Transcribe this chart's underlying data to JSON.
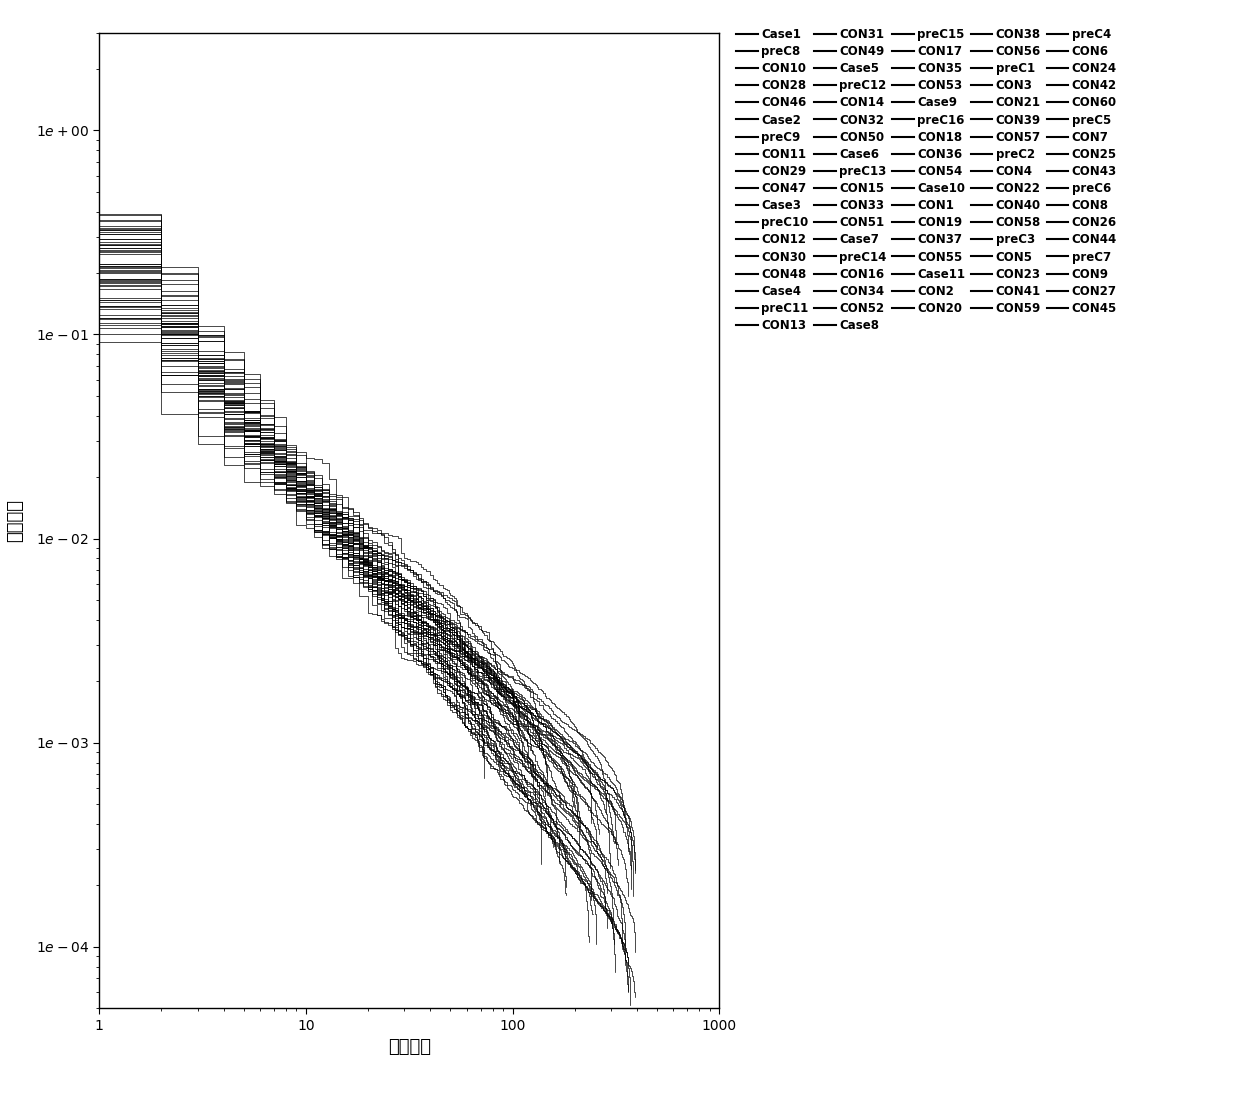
{
  "xlabel": "物种等级",
  "ylabel": "相对丰度",
  "xlim": [
    1,
    1000
  ],
  "ylim": [
    5e-05,
    3
  ],
  "yticks": [
    0.0001,
    0.001,
    0.01,
    0.1,
    1.0
  ],
  "xticks": [
    1,
    10,
    100,
    1000
  ],
  "n_samples": 60,
  "legend_labels": [
    [
      "Case1",
      "preC8",
      "CON10",
      "CON28",
      "CON46"
    ],
    [
      "Case2",
      "preC9",
      "CON11",
      "CON29",
      "CON47"
    ],
    [
      "Case3",
      "preC10",
      "CON12",
      "CON30",
      "CON48"
    ],
    [
      "Case4",
      "preC11",
      "CON13",
      "CON31",
      "CON49"
    ],
    [
      "Case5",
      "preC12",
      "CON14",
      "CON32",
      "CON50"
    ],
    [
      "Case6",
      "preC13",
      "CON15",
      "CON33",
      "CON51"
    ],
    [
      "Case7",
      "preC14",
      "CON16",
      "CON34",
      "CON52"
    ],
    [
      "Case8",
      "preC15",
      "CON17",
      "CON35",
      "CON53"
    ],
    [
      "Case9",
      "preC16",
      "CON18",
      "CON36",
      "CON54"
    ],
    [
      "Case10",
      "CON1",
      "CON19",
      "CON37",
      "CON55"
    ],
    [
      "Case11",
      "CON2",
      "CON20",
      "CON38",
      "CON56"
    ],
    [
      "preC1",
      "CON3",
      "CON21",
      "CON39",
      "CON57"
    ],
    [
      "preC2",
      "CON4",
      "CON22",
      "CON40",
      "CON58"
    ],
    [
      "preC3",
      "CON5",
      "CON23",
      "CON41",
      "CON59"
    ],
    [
      "preC4",
      "CON6",
      "CON24",
      "CON42",
      "CON60"
    ],
    [
      "preC5",
      "CON7",
      "CON25",
      "CON43",
      ""
    ],
    [
      "preC6",
      "CON8",
      "CON26",
      "CON44",
      ""
    ],
    [
      "preC7",
      "CON9",
      "CON27",
      "CON45",
      ""
    ]
  ],
  "line_color": "#000000",
  "background_color": "#ffffff",
  "figsize": [
    12.4,
    10.96
  ],
  "dpi": 100
}
